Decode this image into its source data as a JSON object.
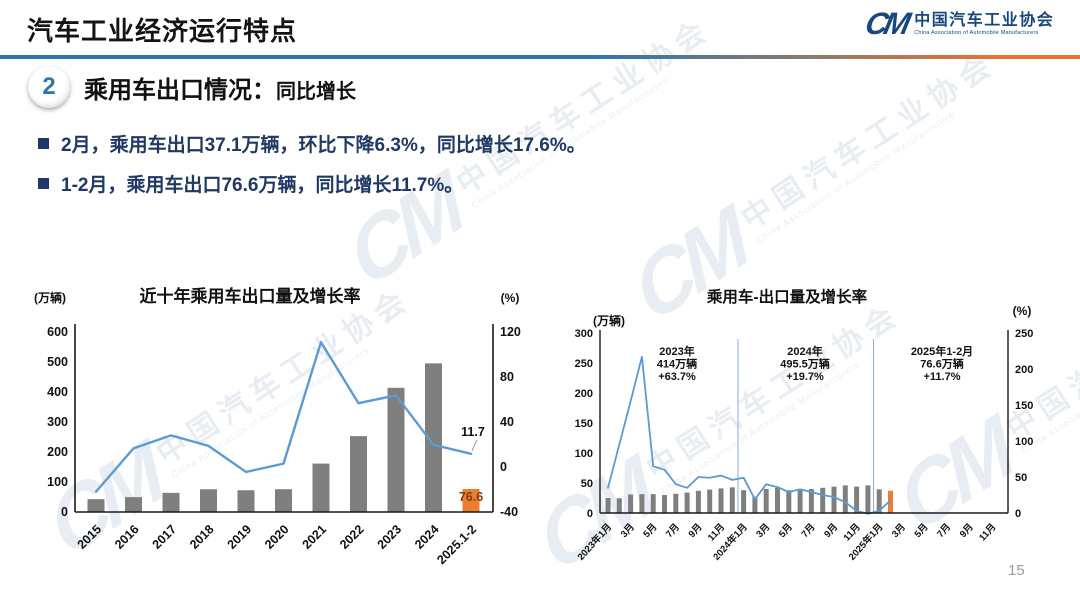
{
  "header": {
    "title": "汽车工业经济运行特点",
    "logo": {
      "monogram": "CM",
      "org_cn": "中国汽车工业协会",
      "org_en": "China Association of Automobile Manufacturers"
    }
  },
  "section": {
    "number": "2",
    "heading": "乘用车出口情况：",
    "subheading": "同比增长"
  },
  "bullets": [
    "2月，乘用车出口37.1万辆，环比下降6.3%，同比增长17.6%。",
    "1-2月，乘用车出口76.6万辆，同比增长11.7%。"
  ],
  "watermark": {
    "monogram": "CM",
    "text_cn": "中国汽车工业协会",
    "text_en": "China Association of Automobile Manufacturers"
  },
  "page_number": "15",
  "colors": {
    "bar_gray": "#7f7f7f",
    "bar_orange": "#ed7d31",
    "line_blue": "#5b9bd5",
    "divider_blue": "#2e75b6",
    "divider_orange": "#e97132",
    "navy_text": "#1f3864",
    "brown_label": "#843c0c",
    "divider_line": "#8faadc",
    "axis_black": "#1a1a1a"
  },
  "chart_data": [
    {
      "type": "bar",
      "combo": "bar+line",
      "title": "近十年乘用车出口量及增长率",
      "unit_left": "(万辆)",
      "unit_right": "(%)",
      "categories": [
        "2015",
        "2016",
        "2017",
        "2018",
        "2019",
        "2020",
        "2021",
        "2022",
        "2023",
        "2024",
        "2025.1-2"
      ],
      "series": [
        {
          "name": "出口量(万辆)",
          "kind": "bar",
          "values": [
            42.8,
            49.6,
            63.9,
            75.8,
            72.5,
            76.0,
            161.4,
            252.9,
            414.0,
            495.5,
            76.6
          ]
        },
        {
          "name": "同比增长率(%)",
          "kind": "line",
          "values": [
            -22,
            16.6,
            28.1,
            18.8,
            -4.4,
            3.0,
            111.0,
            56.7,
            63.7,
            19.7,
            11.7
          ]
        }
      ],
      "highlight_index": 10,
      "left_axis": {
        "ticks": [
          600,
          500,
          400,
          300,
          200,
          100,
          0
        ],
        "min": 0,
        "max": 600
      },
      "right_axis": {
        "ticks": [
          120,
          80,
          40,
          0,
          -40
        ],
        "min": -40,
        "max": 120
      },
      "data_labels": {
        "last_line": "11.7",
        "last_bar": "76.6"
      },
      "grid": false,
      "legend": "none"
    },
    {
      "type": "bar",
      "combo": "bar+line",
      "title": "乘用车-出口量及增长率",
      "unit_left": "(万辆)",
      "unit_right": "(%)",
      "start_month": "2023年1月",
      "n_slots": 36,
      "x_tick_labels": [
        "2023年1月",
        "3月",
        "5月",
        "7月",
        "9月",
        "11月",
        "2024年1月",
        "3月",
        "5月",
        "7月",
        "9月",
        "11月",
        "2025年1月",
        "3月",
        "5月",
        "7月",
        "9月",
        "11月"
      ],
      "series": [
        {
          "name": "出口量(万辆)",
          "kind": "bar",
          "values": [
            25.0,
            24.6,
            30.9,
            31.4,
            31.5,
            30.0,
            32.0,
            34.0,
            37.0,
            39.0,
            41.0,
            42.7,
            38.0,
            27.0,
            40.0,
            42.0,
            38.0,
            38.0,
            40.0,
            42.0,
            44.0,
            46.0,
            44.0,
            46.0,
            39.5,
            37.1
          ]
        },
        {
          "name": "同比增长率(%)",
          "kind": "line",
          "values": [
            35,
            95,
            155,
            217,
            65,
            60,
            40,
            35,
            50,
            49,
            52,
            46,
            49,
            19,
            40,
            36,
            29,
            33,
            29,
            25,
            22,
            15,
            3,
            -1,
            3,
            17.6
          ]
        }
      ],
      "highlight_index": 25,
      "left_axis": {
        "ticks": [
          300,
          250,
          200,
          150,
          100,
          50,
          0
        ],
        "min": 0,
        "max": 300
      },
      "right_axis": {
        "ticks": [
          250,
          200,
          150,
          100,
          50,
          0
        ],
        "min": 0,
        "max": 250
      },
      "annotations": [
        {
          "lines": [
            "2023年",
            "414万辆",
            "+63.7%"
          ]
        },
        {
          "lines": [
            "2024年",
            "495.5万辆",
            "+19.7%"
          ]
        },
        {
          "lines": [
            "2025年1-2月",
            "76.6万辆",
            "+11.7%"
          ]
        }
      ],
      "dividers_after_slot": [
        11,
        23
      ],
      "grid": false,
      "legend": "none"
    }
  ]
}
